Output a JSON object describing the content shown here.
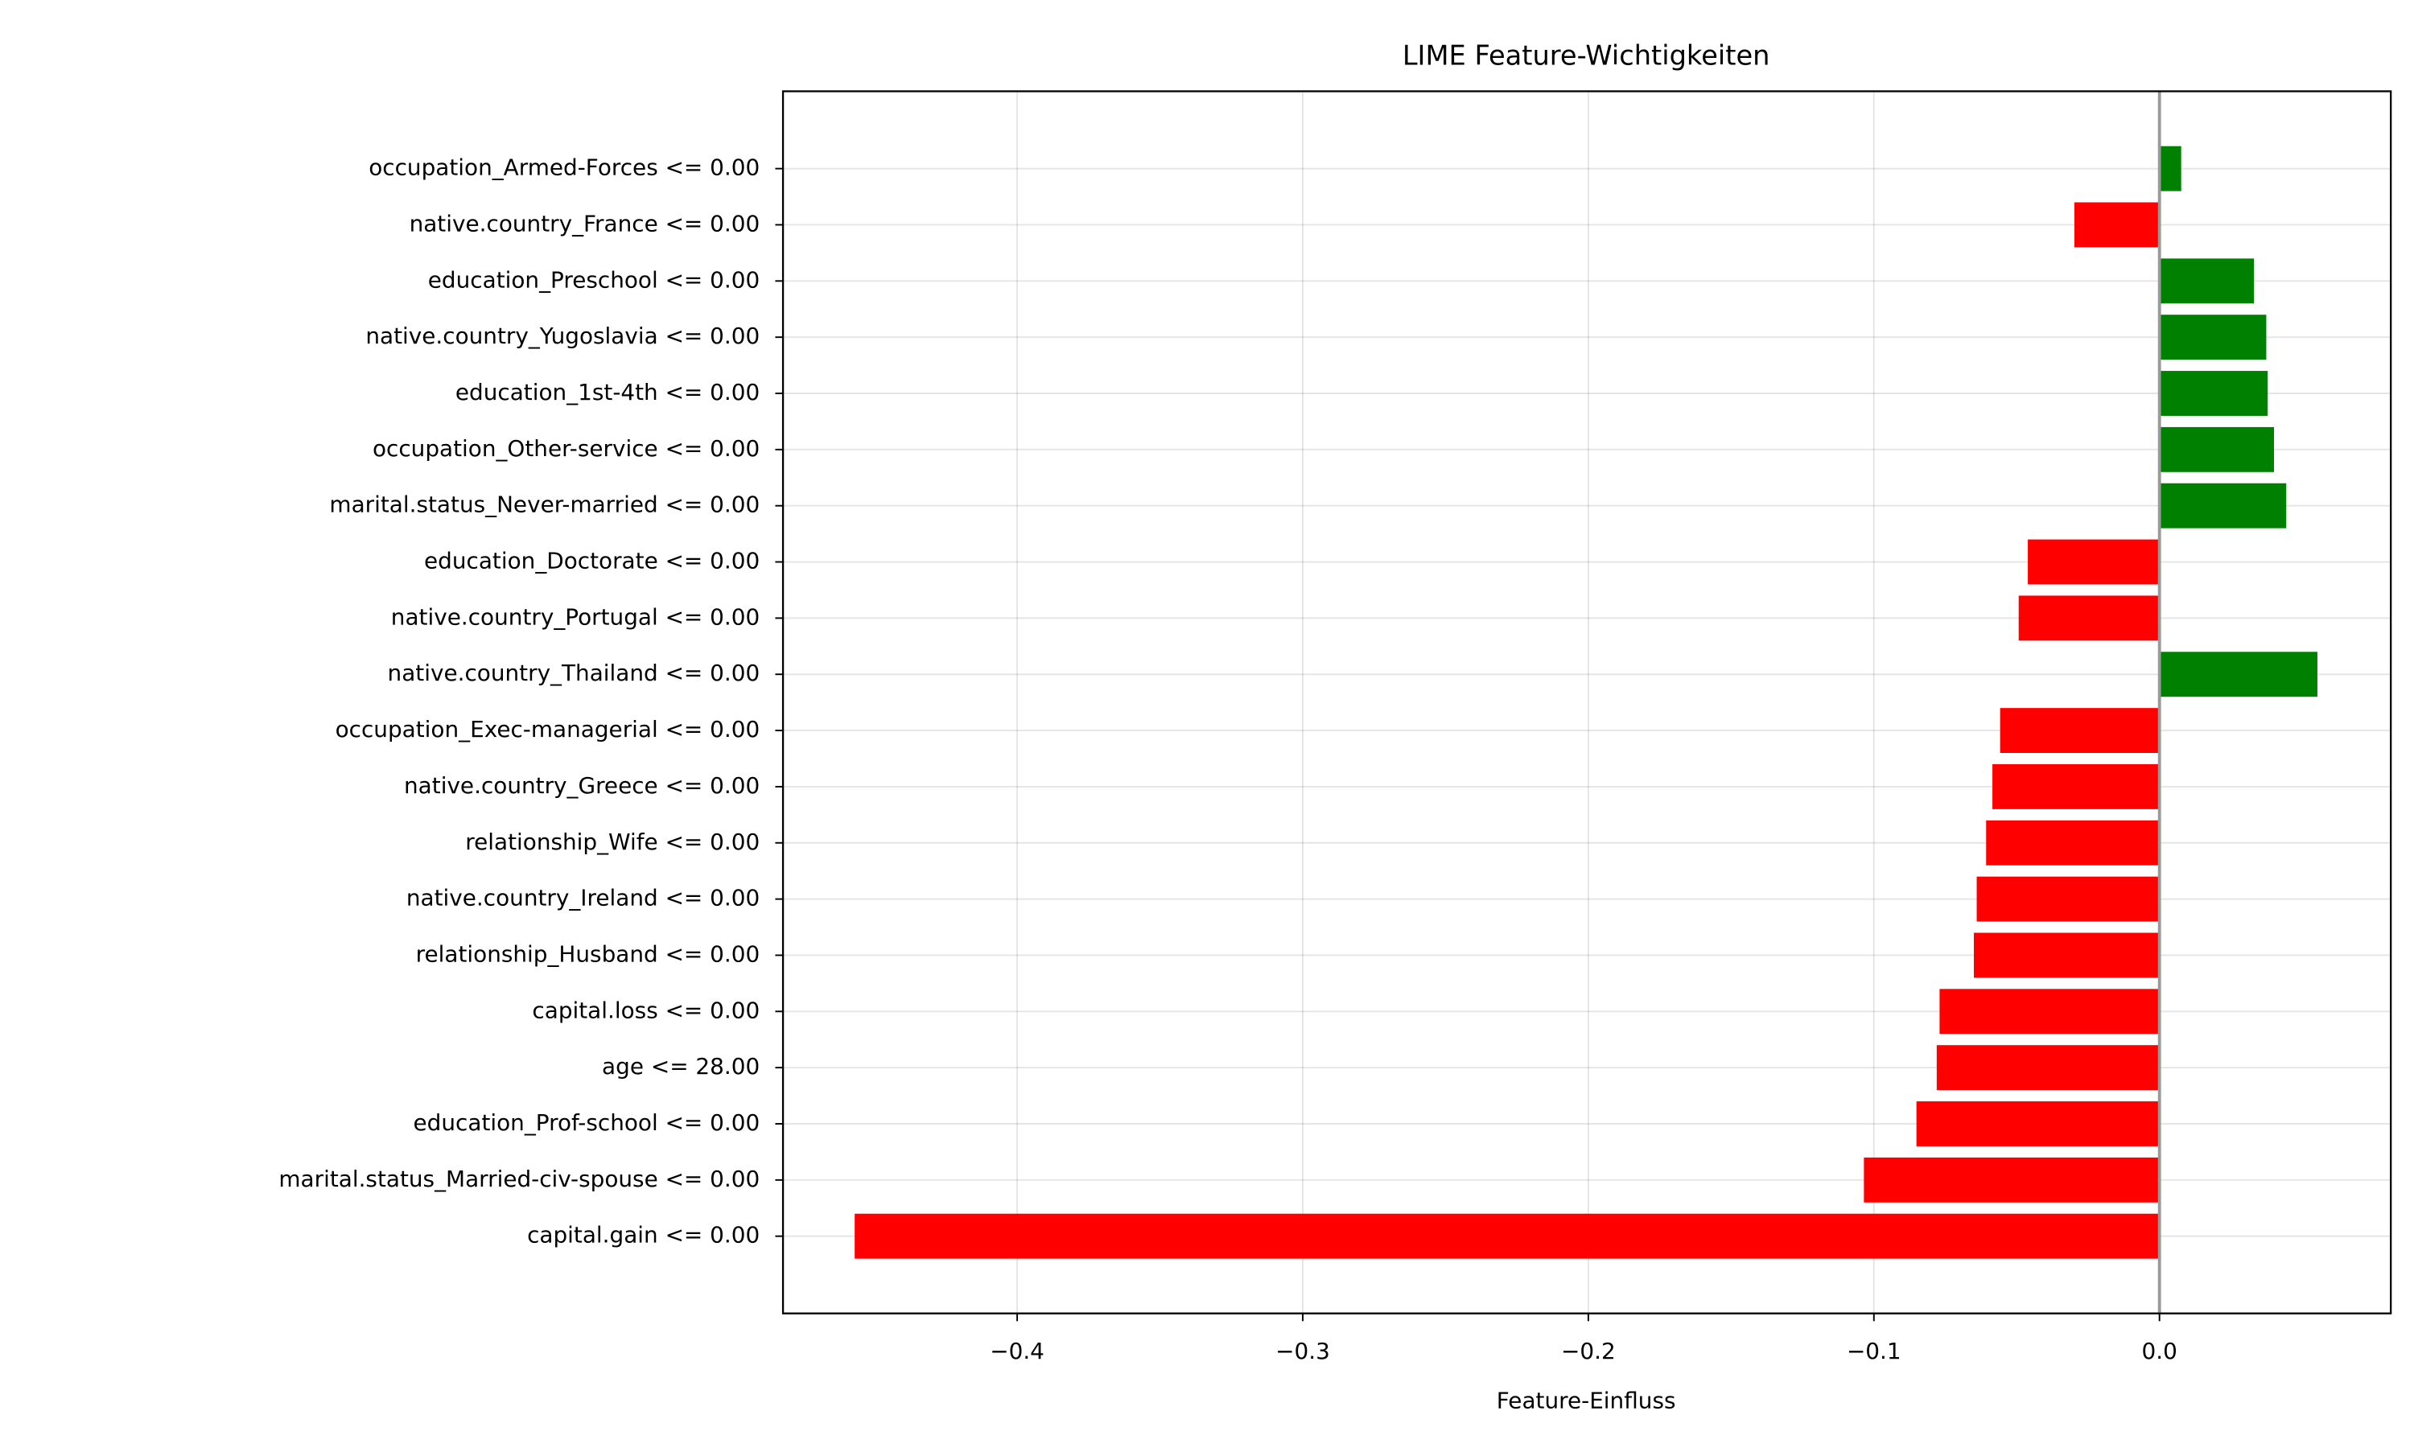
{
  "chart_data": {
    "type": "barh",
    "title": "LIME Feature-Wichtigkeiten",
    "x_label": "Feature-Einfluss",
    "categories": [
      "occupation_Armed-Forces <= 0.00",
      "native.country_France <= 0.00",
      "education_Preschool <= 0.00",
      "native.country_Yugoslavia <= 0.00",
      "education_1st-4th <= 0.00",
      "occupation_Other-service <= 0.00",
      "marital.status_Never-married <= 0.00",
      "education_Doctorate <= 0.00",
      "native.country_Portugal <= 0.00",
      "native.country_Thailand <= 0.00",
      "occupation_Exec-managerial <= 0.00",
      "native.country_Greece <= 0.00",
      "relationship_Wife <= 0.00",
      "native.country_Ireland <= 0.00",
      "relationship_Husband <= 0.00",
      "capital.loss <= 0.00",
      "age <= 28.00",
      "education_Prof-school <= 0.00",
      "marital.status_Married-civ-spouse <= 0.00",
      "capital.gain <= 0.00"
    ],
    "values": [
      0.0076,
      -0.0298,
      0.0331,
      0.0374,
      0.0379,
      0.0401,
      0.0444,
      -0.0461,
      -0.0493,
      0.0553,
      -0.0558,
      -0.0585,
      -0.0607,
      -0.064,
      -0.065,
      -0.077,
      -0.078,
      -0.0851,
      -0.1035,
      -0.4569
    ],
    "positive_color": "green",
    "negative_color": "red",
    "xlim": [
      -0.482,
      0.081
    ],
    "xticks": [
      {
        "value": -0.4,
        "label": "−0.4"
      },
      {
        "value": -0.3,
        "label": "−0.3"
      },
      {
        "value": -0.2,
        "label": "−0.2"
      },
      {
        "value": -0.1,
        "label": "−0.1"
      },
      {
        "value": 0,
        "label": "0.0"
      }
    ],
    "grid": true
  }
}
